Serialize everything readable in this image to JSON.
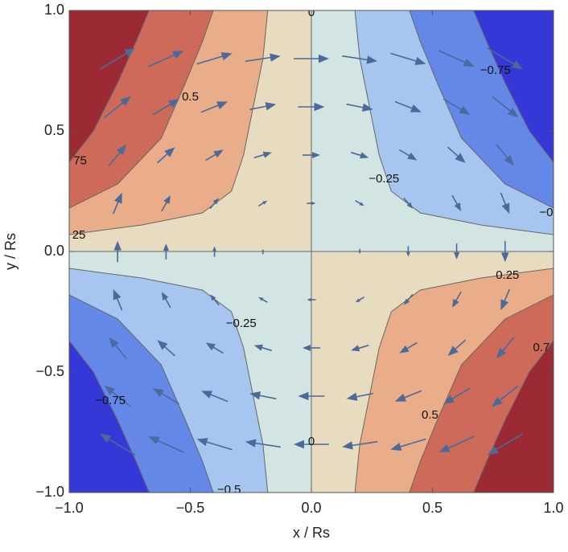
{
  "chart_data": {
    "type": "contour",
    "xlabel": "x / Rs",
    "ylabel": "y / Rs",
    "xlim": [
      -1,
      1
    ],
    "ylim": [
      -1,
      1
    ],
    "xticks": [
      {
        "value": -1,
        "label": "−1.0"
      },
      {
        "value": -0.5,
        "label": "−0.5"
      },
      {
        "value": 0,
        "label": "0.0"
      },
      {
        "value": 0.5,
        "label": "0.5"
      },
      {
        "value": 1,
        "label": "1.0"
      }
    ],
    "yticks": [
      {
        "value": -1,
        "label": "−1.0"
      },
      {
        "value": -0.5,
        "label": "−0.5"
      },
      {
        "value": 0,
        "label": "0.0"
      },
      {
        "value": 0.5,
        "label": "0.5"
      },
      {
        "value": 1,
        "label": "1.0"
      }
    ],
    "line_color": "#666666",
    "quadrants": [
      {
        "color": "#e8dcc0",
        "lines": [
          {
            "color": "#e9ad8a",
            "x": [
              -1,
              -0.7,
              -0.45,
              -0.33,
              -0.28,
              -0.24,
              -0.2,
              -0.18
            ],
            "y": [
              0.07,
              0.11,
              0.16,
              0.25,
              0.4,
              0.6,
              0.8,
              1
            ]
          },
          {
            "color": "#cd6a5a",
            "x": [
              -1,
              -0.8,
              -0.62,
              -0.52,
              -0.45,
              -0.405
            ],
            "y": [
              0.18,
              0.28,
              0.47,
              0.7,
              0.87,
              1
            ]
          },
          {
            "color": "#9b2a35",
            "x": [
              -1,
              -0.9,
              -0.8,
              -0.72,
              -0.67
            ],
            "y": [
              0.37,
              0.5,
              0.7,
              0.88,
              1
            ]
          }
        ]
      },
      {
        "color": "#d2e5e2",
        "lines": [
          {
            "color": "#a6c6ef",
            "x": [
              1,
              0.7,
              0.45,
              0.33,
              0.28,
              0.24,
              0.2,
              0.18
            ],
            "y": [
              0.07,
              0.11,
              0.16,
              0.25,
              0.4,
              0.6,
              0.8,
              1
            ]
          },
          {
            "color": "#6488e8",
            "x": [
              1,
              0.8,
              0.62,
              0.52,
              0.45,
              0.405
            ],
            "y": [
              0.18,
              0.28,
              0.47,
              0.7,
              0.87,
              1
            ]
          },
          {
            "color": "#3538d6",
            "x": [
              1,
              0.9,
              0.8,
              0.72,
              0.67
            ],
            "y": [
              0.37,
              0.5,
              0.7,
              0.88,
              1
            ]
          }
        ]
      },
      {
        "color": "#d2e5e2",
        "lines": [
          {
            "color": "#a6c6ef",
            "x": [
              -1,
              -0.7,
              -0.45,
              -0.33,
              -0.28,
              -0.24,
              -0.2,
              -0.18
            ],
            "y": [
              -0.07,
              -0.11,
              -0.16,
              -0.25,
              -0.4,
              -0.6,
              -0.8,
              -1
            ]
          },
          {
            "color": "#6488e8",
            "x": [
              -1,
              -0.8,
              -0.62,
              -0.52,
              -0.45,
              -0.405
            ],
            "y": [
              -0.18,
              -0.28,
              -0.47,
              -0.7,
              -0.87,
              -1
            ]
          },
          {
            "color": "#3538d6",
            "x": [
              -1,
              -0.9,
              -0.8,
              -0.72,
              -0.67
            ],
            "y": [
              -0.37,
              -0.5,
              -0.7,
              -0.88,
              -1
            ]
          }
        ]
      },
      {
        "color": "#e8dcc0",
        "lines": [
          {
            "color": "#e9ad8a",
            "x": [
              1,
              0.7,
              0.45,
              0.33,
              0.28,
              0.24,
              0.2,
              0.18
            ],
            "y": [
              -0.07,
              -0.11,
              -0.16,
              -0.25,
              -0.4,
              -0.6,
              -0.8,
              -1
            ]
          },
          {
            "color": "#cd6a5a",
            "x": [
              1,
              0.8,
              0.62,
              0.52,
              0.45,
              0.405
            ],
            "y": [
              -0.18,
              -0.28,
              -0.47,
              -0.7,
              -0.87,
              -1
            ]
          },
          {
            "color": "#9b2a35",
            "x": [
              1,
              0.9,
              0.8,
              0.72,
              0.67
            ],
            "y": [
              -0.37,
              -0.5,
              -0.7,
              -0.88,
              -1
            ]
          }
        ]
      }
    ],
    "annotations": [
      {
        "text": "0.5",
        "x": -0.5,
        "y": 0.64
      },
      {
        "text": "75",
        "x": -0.955,
        "y": 0.375
      },
      {
        "text": "25",
        "x": -0.96,
        "y": 0.066
      },
      {
        "text": "0",
        "x": 0,
        "y": 0.99
      },
      {
        "text": "−0.75",
        "x": 0.76,
        "y": 0.75
      },
      {
        "text": "−0.25",
        "x": 0.3,
        "y": 0.3
      },
      {
        "text": "−0",
        "x": 0.97,
        "y": 0.16
      },
      {
        "text": "0.25",
        "x": 0.81,
        "y": -0.1
      },
      {
        "text": "0.7",
        "x": 0.95,
        "y": -0.4
      },
      {
        "text": "0.5",
        "x": 0.49,
        "y": -0.68
      },
      {
        "text": "0",
        "x": 0,
        "y": -0.79
      },
      {
        "text": "−0.75",
        "x": -0.83,
        "y": -0.62
      },
      {
        "text": "−0.25",
        "x": -0.29,
        "y": -0.3
      },
      {
        "text": "−0.5",
        "x": -0.34,
        "y": -0.99
      }
    ],
    "vectors": {
      "color": "#4a6a9a",
      "x": [
        -0.8,
        -0.6,
        -0.4,
        -0.2,
        0,
        0.2,
        0.4,
        0.6,
        0.8
      ],
      "y": [
        0.8,
        0.6,
        0.4,
        0.2,
        0,
        -0.2,
        -0.4,
        -0.6,
        -0.8
      ],
      "u": [
        [
          0.8,
          0.8,
          0.8,
          0.8,
          0.8,
          0.8,
          0.8,
          0.8,
          0.8
        ],
        [
          0.6,
          0.6,
          0.6,
          0.6,
          0.6,
          0.6,
          0.6,
          0.6,
          0.6
        ],
        [
          0.4,
          0.4,
          0.4,
          0.4,
          0.4,
          0.4,
          0.4,
          0.4,
          0.4
        ],
        [
          0.2,
          0.2,
          0.2,
          0.2,
          0.2,
          0.2,
          0.2,
          0.2,
          0.2
        ],
        [
          0,
          0,
          0,
          0,
          0,
          0,
          0,
          0,
          0
        ],
        [
          -0.2,
          -0.2,
          -0.2,
          -0.2,
          -0.2,
          -0.2,
          -0.2,
          -0.2,
          -0.2
        ],
        [
          -0.4,
          -0.4,
          -0.4,
          -0.4,
          -0.4,
          -0.4,
          -0.4,
          -0.4,
          -0.4
        ],
        [
          -0.6,
          -0.6,
          -0.6,
          -0.6,
          -0.6,
          -0.6,
          -0.6,
          -0.6,
          -0.6
        ],
        [
          -0.8,
          -0.8,
          -0.8,
          -0.8,
          -0.8,
          -0.8,
          -0.8,
          -0.8,
          -0.8
        ]
      ],
      "v": [
        [
          0.48,
          0.36,
          0.24,
          0.12,
          0,
          -0.12,
          -0.24,
          -0.36,
          -0.48
        ],
        [
          0.48,
          0.36,
          0.24,
          0.12,
          0,
          -0.12,
          -0.24,
          -0.36,
          -0.48
        ],
        [
          0.48,
          0.36,
          0.24,
          0.12,
          0,
          -0.12,
          -0.24,
          -0.36,
          -0.48
        ],
        [
          0.48,
          0.36,
          0.24,
          0.12,
          0,
          -0.12,
          -0.24,
          -0.36,
          -0.48
        ],
        [
          0.48,
          0.36,
          0.24,
          0.12,
          0,
          -0.12,
          -0.24,
          -0.36,
          -0.48
        ],
        [
          0.48,
          0.36,
          0.24,
          0.12,
          0,
          -0.12,
          -0.24,
          -0.36,
          -0.48
        ],
        [
          0.48,
          0.36,
          0.24,
          0.12,
          0,
          -0.12,
          -0.24,
          -0.36,
          -0.48
        ],
        [
          0.48,
          0.36,
          0.24,
          0.12,
          0,
          -0.12,
          -0.24,
          -0.36,
          -0.48
        ],
        [
          0.48,
          0.36,
          0.24,
          0.12,
          0,
          -0.12,
          -0.24,
          -0.36,
          -0.48
        ]
      ]
    }
  }
}
